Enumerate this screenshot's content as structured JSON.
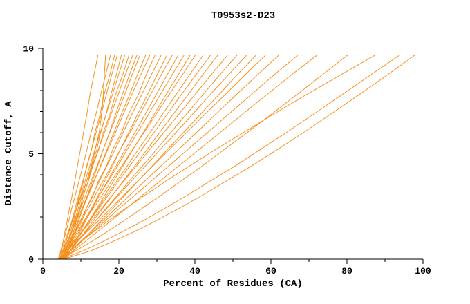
{
  "title": "T0953s2-D23",
  "colors": {
    "curve": "#f59120",
    "axis": "#000000",
    "text": "#000000",
    "background": "#ffffff"
  },
  "chart_data": {
    "type": "line",
    "title": "T0953s2-D23",
    "xlabel": "Percent of Residues (CA)",
    "ylabel": "Distance Cutoff, A",
    "xlim": [
      0,
      100
    ],
    "ylim": [
      0,
      10
    ],
    "grid": false,
    "legend": false,
    "x_ticks": [
      0,
      20,
      40,
      60,
      80,
      100
    ],
    "x_minor_step": 5,
    "y_ticks": [
      0,
      5,
      10
    ],
    "y_minor_step": 1,
    "y_levels": [
      0,
      0.4,
      0.8,
      1.3,
      1.8,
      2.4,
      3.0,
      3.7,
      4.4,
      5.2,
      6.0,
      6.9,
      7.8,
      8.8,
      9.7
    ],
    "series": [
      [
        4.5,
        4.9,
        5.3,
        5.8,
        6.4,
        7.0,
        7.7,
        8.4,
        9.1,
        9.9,
        10.7,
        11.6,
        12.4,
        13.5,
        14.5
      ],
      [
        5.5,
        6.1,
        6.7,
        7.5,
        8.3,
        9.3,
        10.3,
        11.5,
        12.7,
        13.8,
        14.8,
        15.5,
        15.9,
        16.2,
        16.5
      ],
      [
        4.2,
        4.7,
        5.3,
        6.1,
        6.8,
        7.6,
        8.5,
        9.5,
        10.5,
        11.6,
        12.7,
        14.0,
        15.2,
        16.6,
        17.8
      ],
      [
        5.5,
        6.0,
        6.7,
        7.2,
        8.1,
        8.8,
        9.6,
        10.7,
        11.5,
        12.8,
        13.7,
        15.1,
        16.1,
        17.7,
        18.9
      ],
      [
        4.8,
        5.4,
        6.1,
        6.9,
        7.6,
        8.5,
        9.4,
        10.5,
        11.6,
        12.8,
        14.0,
        15.4,
        16.7,
        18.2,
        19.6
      ],
      [
        6.0,
        6.6,
        7.3,
        8.1,
        8.8,
        9.9,
        10.6,
        11.9,
        12.8,
        14.2,
        15.2,
        16.7,
        17.9,
        19.4,
        20.7
      ],
      [
        4.5,
        5.2,
        6.0,
        6.9,
        7.8,
        8.8,
        9.9,
        11.1,
        12.3,
        13.7,
        15.1,
        16.7,
        18.3,
        20.0,
        21.6
      ],
      [
        5.2,
        6.0,
        6.6,
        7.7,
        8.4,
        9.7,
        10.6,
        12.0,
        13.1,
        14.7,
        15.9,
        17.7,
        19.1,
        21.1,
        22.7
      ],
      [
        4.0,
        4.8,
        5.7,
        6.7,
        7.7,
        8.9,
        10.1,
        11.5,
        13.0,
        14.6,
        16.2,
        18.0,
        19.8,
        21.8,
        23.7
      ],
      [
        5.8,
        6.6,
        7.4,
        8.4,
        9.4,
        10.5,
        11.7,
        13.0,
        14.4,
        15.9,
        17.5,
        19.2,
        20.9,
        22.9,
        24.8
      ],
      [
        4.6,
        5.5,
        6.4,
        7.5,
        8.6,
        9.9,
        11.2,
        12.7,
        14.2,
        15.9,
        17.6,
        19.6,
        21.5,
        23.6,
        25.6
      ],
      [
        5.0,
        5.9,
        6.9,
        8.0,
        9.2,
        10.5,
        11.9,
        13.5,
        15.1,
        16.9,
        18.7,
        20.7,
        22.8,
        25.0,
        27.1
      ],
      [
        4.3,
        5.3,
        6.3,
        7.6,
        8.8,
        10.3,
        11.7,
        13.4,
        15.2,
        17.1,
        19.1,
        21.2,
        23.4,
        25.9,
        28.2
      ],
      [
        5.5,
        6.4,
        7.7,
        8.7,
        10.3,
        11.4,
        13.2,
        14.6,
        16.7,
        18.4,
        20.7,
        22.6,
        25.1,
        27.3,
        29.6
      ],
      [
        4.8,
        5.9,
        7.0,
        8.4,
        9.8,
        11.4,
        13.0,
        14.9,
        16.8,
        19.0,
        21.1,
        23.5,
        26.0,
        28.7,
        31.2
      ],
      [
        6.2,
        7.3,
        8.5,
        9.8,
        11.2,
        12.8,
        14.5,
        16.3,
        18.3,
        20.4,
        22.6,
        25.0,
        27.5,
        30.2,
        32.7
      ],
      [
        4.4,
        5.6,
        6.9,
        8.5,
        10.0,
        11.9,
        13.7,
        15.8,
        18.0,
        20.4,
        22.9,
        25.6,
        28.3,
        31.3,
        34.1
      ],
      [
        5.3,
        6.6,
        7.9,
        9.5,
        11.1,
        13.0,
        14.8,
        17.0,
        19.2,
        21.7,
        24.2,
        27.0,
        29.8,
        32.9,
        35.7
      ],
      [
        4.7,
        6.0,
        7.4,
        9.1,
        10.8,
        12.8,
        14.8,
        17.2,
        19.6,
        22.2,
        24.9,
        27.9,
        30.9,
        34.2,
        37.2
      ],
      [
        5.9,
        7.3,
        8.7,
        10.4,
        12.1,
        14.2,
        16.2,
        18.6,
        21.0,
        23.7,
        26.4,
        29.4,
        32.4,
        35.8,
        38.8
      ],
      [
        4.2,
        5.7,
        7.2,
        9.1,
        11.0,
        13.2,
        15.5,
        18.0,
        20.7,
        23.6,
        26.6,
        29.9,
        33.2,
        36.9,
        40.2
      ],
      [
        5.1,
        6.7,
        8.2,
        10.2,
        12.1,
        14.4,
        16.7,
        19.4,
        22.1,
        25.1,
        28.2,
        31.6,
        35.0,
        38.8,
        42.3
      ],
      [
        4.9,
        6.5,
        8.2,
        10.2,
        12.3,
        14.7,
        17.1,
        19.9,
        22.8,
        26.0,
        29.2,
        32.8,
        36.4,
        40.5,
        44.2
      ],
      [
        5.6,
        7.3,
        9.0,
        11.1,
        13.2,
        15.7,
        18.2,
        21.1,
        24.1,
        27.4,
        30.7,
        34.4,
        38.2,
        42.3,
        46.1
      ],
      [
        4.4,
        6.2,
        8.0,
        10.3,
        12.7,
        15.4,
        18.1,
        21.3,
        24.5,
        28.1,
        31.8,
        35.9,
        40.0,
        44.5,
        48.7
      ],
      [
        5.2,
        7.1,
        9.0,
        11.4,
        13.8,
        16.6,
        19.5,
        22.7,
        26.1,
        29.9,
        33.6,
        37.9,
        42.1,
        46.8,
        51.2
      ],
      [
        4.6,
        6.6,
        8.7,
        11.2,
        13.8,
        16.8,
        19.8,
        23.3,
        26.9,
        30.9,
        35.0,
        39.5,
        44.0,
        49.1,
        53.7
      ],
      [
        5.8,
        7.9,
        10.0,
        12.6,
        15.2,
        18.3,
        21.4,
        25.0,
        28.7,
        32.8,
        37.0,
        41.6,
        46.3,
        51.4,
        56.2
      ],
      [
        4.3,
        6.5,
        8.8,
        11.6,
        14.5,
        17.8,
        21.1,
        25.0,
        28.9,
        33.3,
        37.8,
        42.8,
        47.9,
        53.5,
        58.7
      ],
      [
        5.0,
        7.4,
        9.7,
        12.7,
        15.7,
        19.2,
        22.7,
        26.8,
        31.0,
        35.7,
        40.4,
        45.6,
        50.9,
        56.8,
        62.2
      ],
      [
        4.7,
        7.3,
        9.9,
        13.1,
        16.3,
        20.1,
        24.0,
        28.5,
        33.0,
        38.1,
        43.3,
        49.0,
        54.8,
        61.2,
        67.2
      ],
      [
        5.4,
        8.1,
        10.9,
        14.3,
        17.8,
        21.9,
        26.0,
        30.8,
        35.6,
        41.1,
        46.6,
        52.7,
        58.9,
        65.8,
        72.3
      ],
      [
        4.5,
        8.7,
        12.5,
        16.9,
        21.2,
        26.0,
        30.9,
        36.3,
        41.8,
        47.7,
        53.7,
        60.3,
        66.8,
        73.9,
        80.3
      ],
      [
        5.2,
        7.3,
        9.8,
        13.4,
        17.1,
        21.7,
        26.6,
        32.4,
        38.4,
        45.4,
        52.7,
        60.9,
        69.3,
        78.9,
        87.6
      ],
      [
        4.8,
        10.7,
        15.4,
        20.9,
        26.2,
        32.0,
        37.7,
        44.0,
        50.4,
        57.2,
        64.0,
        71.4,
        78.7,
        86.7,
        94.0
      ],
      [
        5.5,
        12.7,
        18.0,
        24.0,
        29.6,
        35.7,
        41.7,
        48.2,
        54.7,
        61.7,
        68.5,
        75.9,
        83.2,
        91.1,
        98.0
      ]
    ]
  }
}
